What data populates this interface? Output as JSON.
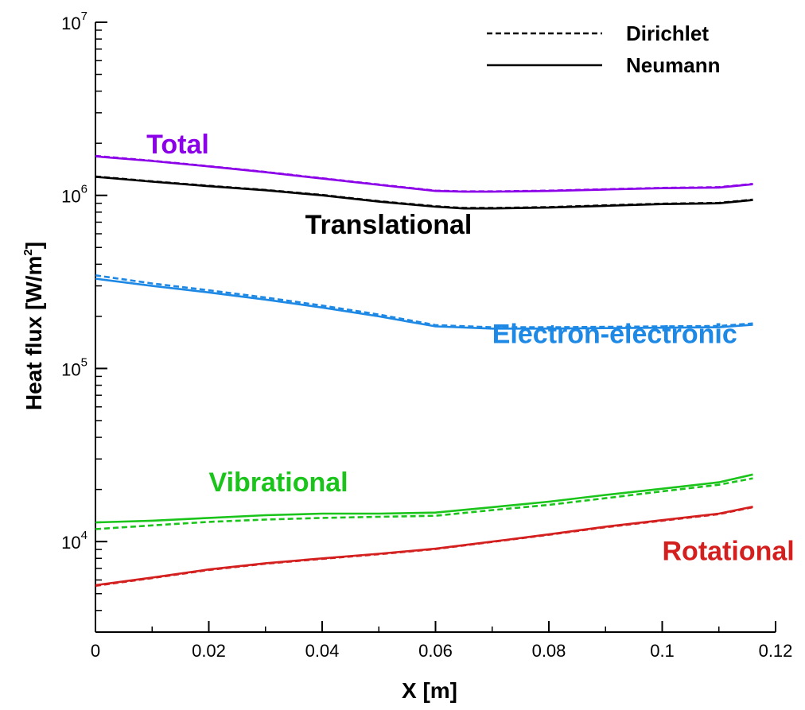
{
  "chart_data": {
    "type": "line",
    "xlabel": "X [m]",
    "ylabel_text": "Heat flux [W/m",
    "ylabel_sup": "2",
    "ylabel_close": "]",
    "yscale": "log",
    "xlim": [
      0,
      0.12
    ],
    "ylim": [
      3000,
      10000000
    ],
    "x_ticks": [
      0,
      0.02,
      0.04,
      0.06,
      0.08,
      0.1,
      0.12
    ],
    "x_tick_labels": [
      "0",
      "0.02",
      "0.04",
      "0.06",
      "0.08",
      "0.1",
      "0.12"
    ],
    "y_major_ticks": [
      {
        "value": 10000,
        "base": "10",
        "exp": "4"
      },
      {
        "value": 100000,
        "base": "10",
        "exp": "5"
      },
      {
        "value": 1000000,
        "base": "10",
        "exp": "6"
      },
      {
        "value": 10000000,
        "base": "10",
        "exp": "7"
      }
    ],
    "legend": [
      {
        "label": "Dirichlet",
        "style": "dashed"
      },
      {
        "label": "Neumann",
        "style": "solid"
      }
    ],
    "series": [
      {
        "name": "Total",
        "color": "#8B00E8",
        "label_pos": {
          "x": 0.009,
          "y": 1750000
        },
        "neumann": [
          [
            0,
            1680000
          ],
          [
            0.01,
            1580000
          ],
          [
            0.02,
            1470000
          ],
          [
            0.03,
            1360000
          ],
          [
            0.04,
            1250000
          ],
          [
            0.05,
            1150000
          ],
          [
            0.06,
            1060000
          ],
          [
            0.065,
            1050000
          ],
          [
            0.07,
            1050000
          ],
          [
            0.08,
            1060000
          ],
          [
            0.09,
            1080000
          ],
          [
            0.1,
            1100000
          ],
          [
            0.11,
            1110000
          ],
          [
            0.116,
            1160000
          ]
        ],
        "dirichlet": [
          [
            0,
            1690000
          ],
          [
            0.01,
            1585000
          ],
          [
            0.02,
            1475000
          ],
          [
            0.03,
            1365000
          ],
          [
            0.04,
            1255000
          ],
          [
            0.05,
            1155000
          ],
          [
            0.06,
            1065000
          ],
          [
            0.065,
            1055000
          ],
          [
            0.07,
            1055000
          ],
          [
            0.08,
            1065000
          ],
          [
            0.09,
            1085000
          ],
          [
            0.1,
            1105000
          ],
          [
            0.11,
            1115000
          ],
          [
            0.116,
            1165000
          ]
        ]
      },
      {
        "name": "Translational",
        "color": "#000000",
        "label_pos": {
          "x": 0.037,
          "y": 600000
        },
        "neumann": [
          [
            0,
            1280000
          ],
          [
            0.01,
            1200000
          ],
          [
            0.02,
            1130000
          ],
          [
            0.03,
            1070000
          ],
          [
            0.04,
            1000000
          ],
          [
            0.05,
            920000
          ],
          [
            0.06,
            860000
          ],
          [
            0.065,
            840000
          ],
          [
            0.07,
            840000
          ],
          [
            0.08,
            850000
          ],
          [
            0.09,
            870000
          ],
          [
            0.1,
            890000
          ],
          [
            0.11,
            900000
          ],
          [
            0.116,
            940000
          ]
        ],
        "dirichlet": [
          [
            0,
            1285000
          ],
          [
            0.01,
            1205000
          ],
          [
            0.02,
            1135000
          ],
          [
            0.03,
            1075000
          ],
          [
            0.04,
            1005000
          ],
          [
            0.05,
            925000
          ],
          [
            0.06,
            865000
          ],
          [
            0.065,
            845000
          ],
          [
            0.07,
            845000
          ],
          [
            0.08,
            855000
          ],
          [
            0.09,
            875000
          ],
          [
            0.1,
            895000
          ],
          [
            0.11,
            905000
          ],
          [
            0.116,
            945000
          ]
        ]
      },
      {
        "name": "Electron-electronic",
        "color": "#1E88E5",
        "label_pos": {
          "x": 0.07,
          "y": 140000
        },
        "neumann": [
          [
            0,
            330000
          ],
          [
            0.01,
            300000
          ],
          [
            0.02,
            275000
          ],
          [
            0.03,
            250000
          ],
          [
            0.04,
            225000
          ],
          [
            0.05,
            200000
          ],
          [
            0.06,
            175000
          ],
          [
            0.07,
            170000
          ],
          [
            0.08,
            170000
          ],
          [
            0.09,
            171000
          ],
          [
            0.1,
            172000
          ],
          [
            0.11,
            173000
          ],
          [
            0.116,
            179000
          ]
        ],
        "dirichlet": [
          [
            0,
            345000
          ],
          [
            0.01,
            310000
          ],
          [
            0.02,
            283000
          ],
          [
            0.03,
            257000
          ],
          [
            0.04,
            231000
          ],
          [
            0.05,
            205000
          ],
          [
            0.06,
            178000
          ],
          [
            0.07,
            173000
          ],
          [
            0.08,
            173000
          ],
          [
            0.09,
            174000
          ],
          [
            0.1,
            175000
          ],
          [
            0.11,
            176000
          ],
          [
            0.116,
            182000
          ]
        ]
      },
      {
        "name": "Vibrational",
        "color": "#1BC41B",
        "label_pos": {
          "x": 0.02,
          "y": 19500
        },
        "neumann": [
          [
            0,
            12900
          ],
          [
            0.01,
            13200
          ],
          [
            0.02,
            13700
          ],
          [
            0.03,
            14200
          ],
          [
            0.04,
            14500
          ],
          [
            0.05,
            14500
          ],
          [
            0.06,
            14700
          ],
          [
            0.07,
            15800
          ],
          [
            0.08,
            17000
          ],
          [
            0.09,
            18600
          ],
          [
            0.1,
            20200
          ],
          [
            0.11,
            22000
          ],
          [
            0.116,
            24400
          ]
        ],
        "dirichlet": [
          [
            0,
            11800
          ],
          [
            0.01,
            12400
          ],
          [
            0.02,
            13000
          ],
          [
            0.03,
            13400
          ],
          [
            0.04,
            13700
          ],
          [
            0.05,
            13900
          ],
          [
            0.06,
            14100
          ],
          [
            0.07,
            15200
          ],
          [
            0.08,
            16300
          ],
          [
            0.09,
            17800
          ],
          [
            0.1,
            19500
          ],
          [
            0.11,
            21300
          ],
          [
            0.116,
            23200
          ]
        ]
      },
      {
        "name": "Rotational",
        "color": "#D41F1F",
        "label_pos": {
          "x": 0.1,
          "y": 7800
        },
        "neumann": [
          [
            0,
            5600
          ],
          [
            0.01,
            6200
          ],
          [
            0.02,
            6900
          ],
          [
            0.03,
            7500
          ],
          [
            0.04,
            8000
          ],
          [
            0.05,
            8500
          ],
          [
            0.06,
            9100
          ],
          [
            0.07,
            10000
          ],
          [
            0.08,
            11000
          ],
          [
            0.09,
            12200
          ],
          [
            0.1,
            13300
          ],
          [
            0.11,
            14500
          ],
          [
            0.116,
            15900
          ]
        ],
        "dirichlet": [
          [
            0,
            5550
          ],
          [
            0.01,
            6150
          ],
          [
            0.02,
            6850
          ],
          [
            0.03,
            7450
          ],
          [
            0.04,
            7950
          ],
          [
            0.05,
            8450
          ],
          [
            0.06,
            9050
          ],
          [
            0.07,
            9950
          ],
          [
            0.08,
            10950
          ],
          [
            0.09,
            12100
          ],
          [
            0.1,
            13200
          ],
          [
            0.11,
            14400
          ],
          [
            0.116,
            15800
          ]
        ]
      }
    ]
  }
}
